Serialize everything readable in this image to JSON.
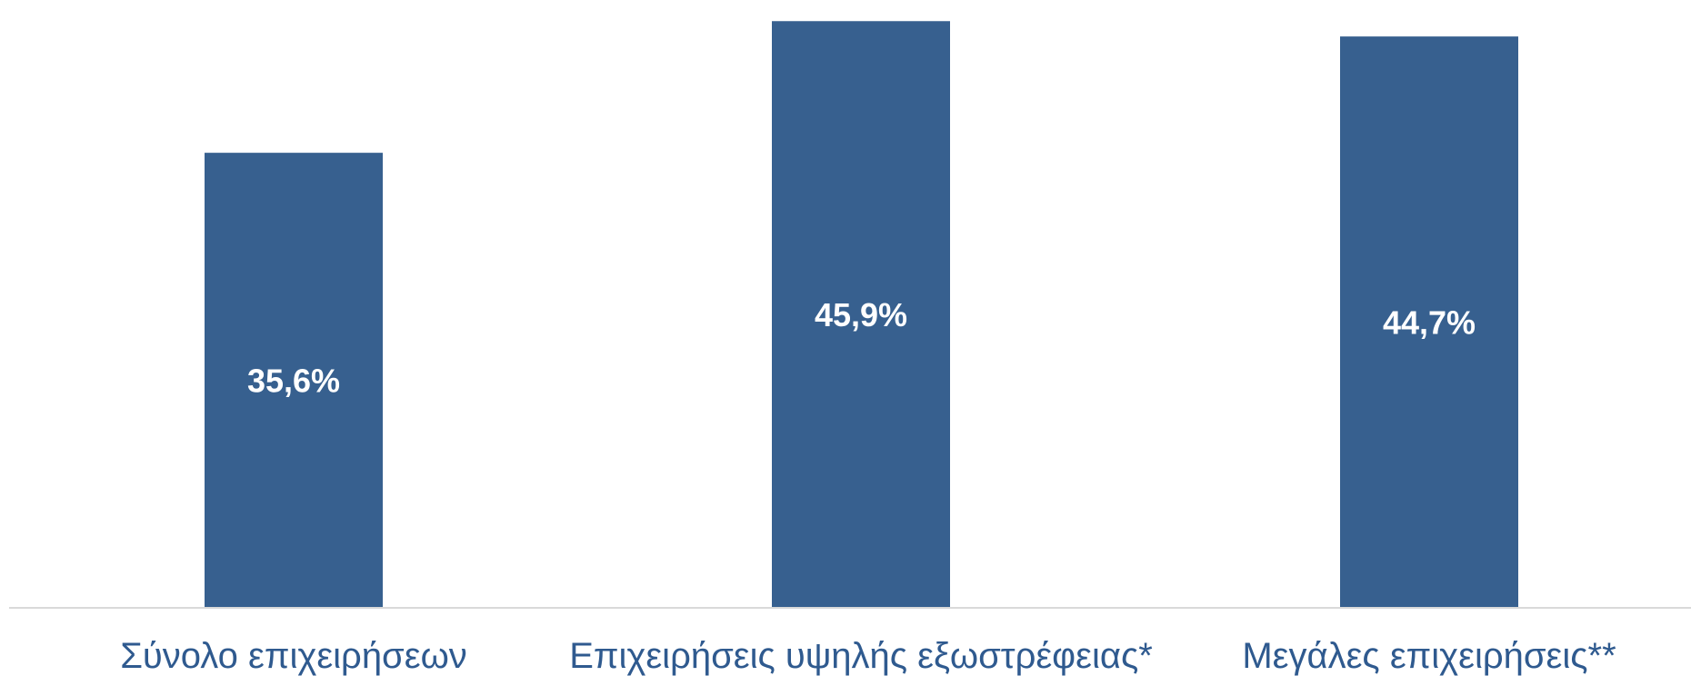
{
  "chart_data": {
    "type": "bar",
    "categories": [
      "Σύνολο επιχειρήσεων",
      "Επιχειρήσεις υψηλής εξωστρέφειας*",
      "Μεγάλες επιχειρήσεις**"
    ],
    "values": [
      35.6,
      45.9,
      44.7
    ],
    "data_labels": [
      "35,6%",
      "45,9%",
      "44,7%"
    ],
    "title": "",
    "xlabel": "",
    "ylabel": "",
    "ylim": [
      0,
      46.7
    ],
    "grid": false,
    "legend": "none",
    "colors": {
      "bar": "#37608f",
      "baseline": "#d9d9d9",
      "category_text": "#2f5a8f",
      "value_text": "#ffffff"
    }
  }
}
